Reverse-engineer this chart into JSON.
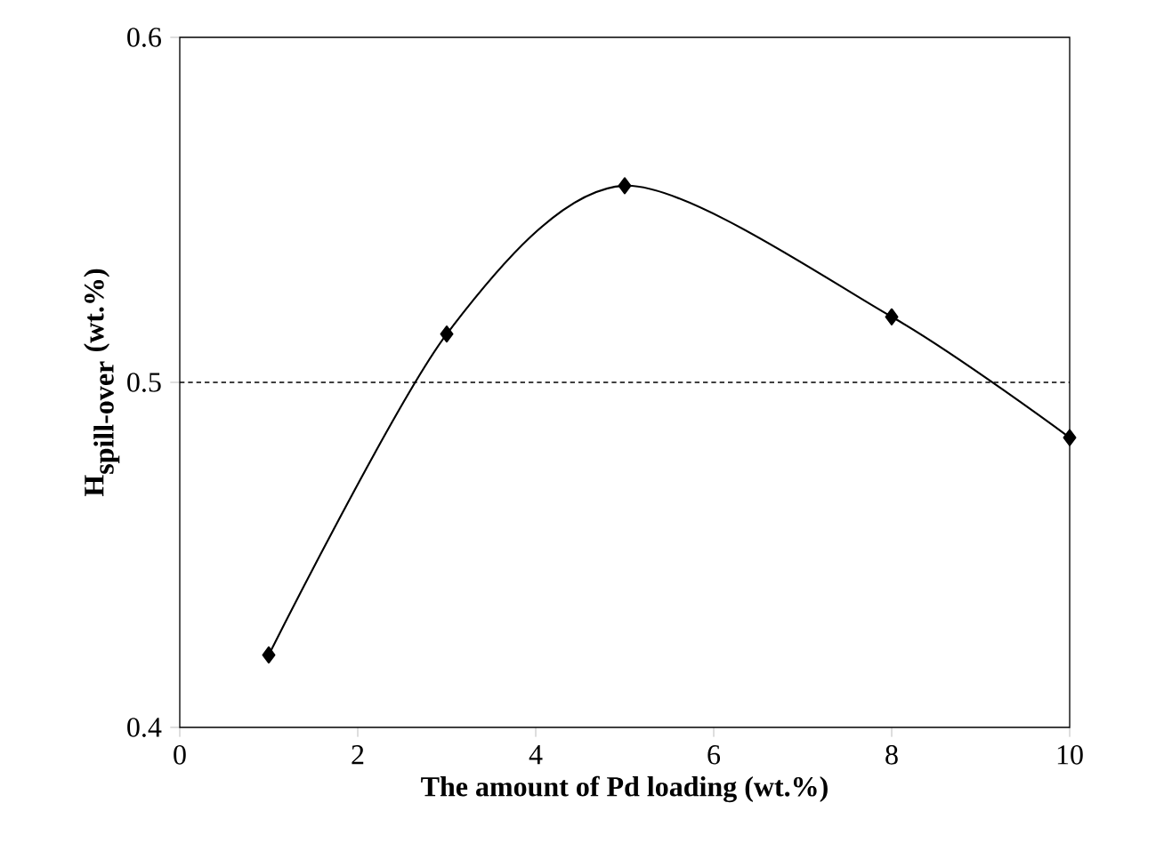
{
  "chart_data": {
    "type": "line",
    "xlabel": "The amount of Pd loading (wt.%)",
    "ylabel": "\\textbf{H}_{\\textbf{spill-over}}\\ \\textbf{(wt.\\%)}",
    "x": [
      1,
      3,
      5,
      8,
      10
    ],
    "values": [
      0.421,
      0.514,
      0.557,
      0.519,
      0.484
    ],
    "color": "#000000",
    "marker": "diamond",
    "line_style": "solid",
    "xlim": [
      0,
      10
    ],
    "ylim": [
      0.4,
      0.6
    ],
    "xticks": [
      0,
      2,
      4,
      6,
      8,
      10
    ],
    "yticks": [
      0.4,
      0.5,
      0.6
    ],
    "ref_lines": [
      {
        "axis": "y",
        "value": 0.5,
        "line_style": "dashed",
        "color": "#000000"
      }
    ]
  }
}
